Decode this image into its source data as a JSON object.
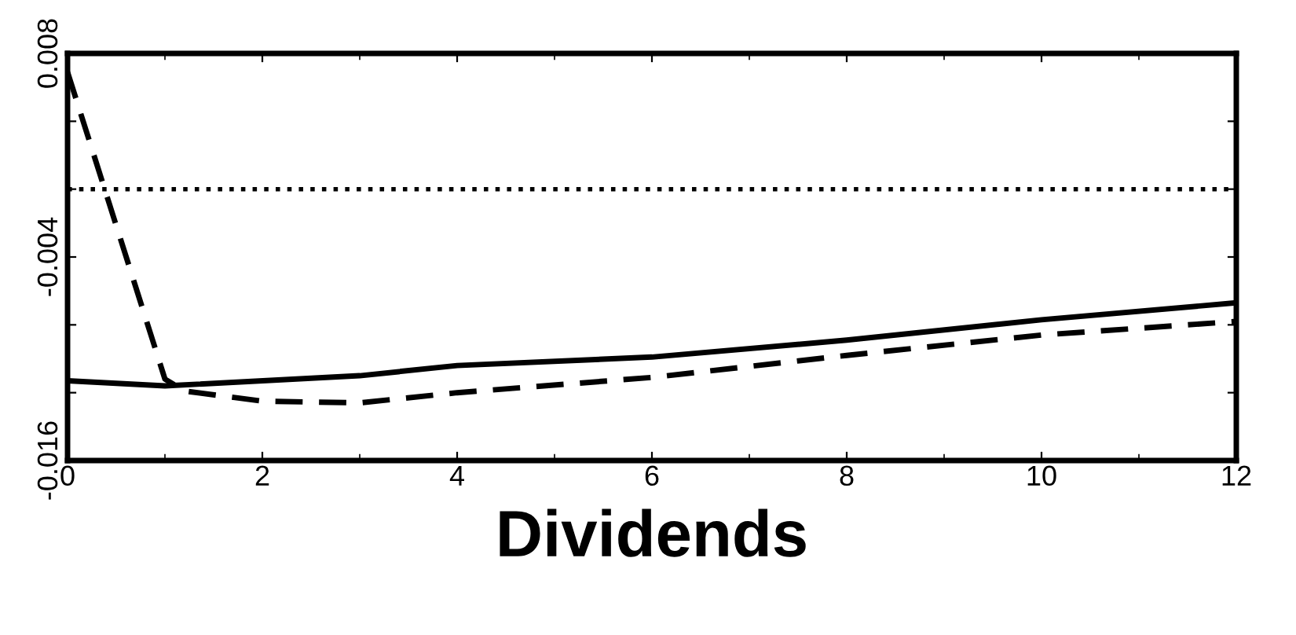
{
  "chart_data": {
    "type": "line",
    "xlabel": "Dividends",
    "series": [
      {
        "color": "#000000",
        "line_style": "solid",
        "x": [
          0,
          1,
          3,
          4,
          6,
          8,
          10,
          12
        ],
        "values": [
          -0.0113,
          -0.0116,
          -0.011,
          -0.0104,
          -0.0099,
          -0.0089,
          -0.0077,
          -0.0067
        ]
      },
      {
        "color": "#000000",
        "line_style": "dashed",
        "x": [
          0,
          1,
          1.2,
          2,
          3,
          4,
          6,
          8,
          10,
          12
        ],
        "values": [
          0.0069,
          -0.0112,
          -0.0119,
          -0.0125,
          -0.0126,
          -0.012,
          -0.0111,
          -0.0098,
          -0.0086,
          -0.0078
        ]
      }
    ],
    "ref_lines": [
      {
        "axis": "y",
        "value": 0,
        "line_style": "dotted",
        "color": "#000000"
      }
    ],
    "xlim": [
      0,
      12
    ],
    "xticks": [
      0,
      2,
      4,
      6,
      8,
      10,
      12
    ],
    "ylim": [
      -0.016,
      0.008
    ],
    "yticks": [
      -0.016,
      {
        "value": -0.012,
        "label": null
      },
      {
        "value": -0.008,
        "label": null
      },
      -0.004,
      {
        "value": 0,
        "label": null
      },
      {
        "value": 0.004,
        "label": null
      },
      0.008
    ],
    "grid": false,
    "legend": false,
    "marker": "none"
  }
}
